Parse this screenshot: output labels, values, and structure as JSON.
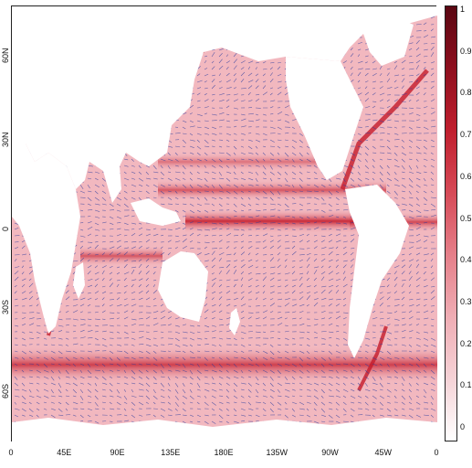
{
  "map": {
    "lat_ticks": [
      {
        "label": "60N",
        "lat": 60
      },
      {
        "label": "30N",
        "lat": 30
      },
      {
        "label": "0",
        "lat": 0
      },
      {
        "label": "30S",
        "lat": -30
      },
      {
        "label": "60S",
        "lat": -60
      }
    ],
    "lon_ticks": [
      {
        "label": "0",
        "lon": 0
      },
      {
        "label": "45E",
        "lon": 45
      },
      {
        "label": "90E",
        "lon": 90
      },
      {
        "label": "135E",
        "lon": 135
      },
      {
        "label": "180E",
        "lon": 180
      },
      {
        "label": "135W",
        "lon": 225
      },
      {
        "label": "90W",
        "lon": 270
      },
      {
        "label": "45W",
        "lon": 315
      },
      {
        "label": "0",
        "lon": 360
      }
    ],
    "lat_range": [
      -78,
      78
    ],
    "lon_range": [
      0,
      360
    ],
    "field_colors": {
      "ocean_base": "#f2b8bf",
      "strong": "#c41a2a",
      "land": "#ffffff",
      "vectors": "#2b3c9e"
    }
  },
  "colorbar": {
    "range": [
      0,
      1
    ],
    "ticks": [
      "1",
      "0.9",
      "0.8",
      "0.7",
      "0.6",
      "0.5",
      "0.4",
      "0.3",
      "0.2",
      "0.1",
      "0"
    ],
    "colors": [
      "#ffffff",
      "#f5d2d6",
      "#efadb4",
      "#e57f89",
      "#d64a57",
      "#c01f2e",
      "#8e0f1e",
      "#5a0712"
    ]
  }
}
